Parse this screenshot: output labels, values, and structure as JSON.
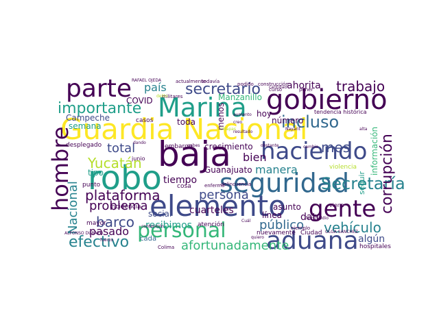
{
  "palette": {
    "dark-purple": "#440154",
    "indigo": "#3e4a89",
    "blue": "#31688e",
    "teal": "#26828e",
    "green": "#1f9e89",
    "lime": "#35b779",
    "light-green": "#6ece58",
    "yellow-green": "#b5de2b",
    "yellow": "#fde725"
  },
  "words": [
    "Guardia Nacional",
    "Marina",
    "baja",
    "gobierno",
    "seguridad",
    "elemento",
    "robo",
    "aduana",
    "haciendo",
    "gente",
    "parte",
    "personal",
    "hombre",
    "importante",
    "Secretaría",
    "secretario",
    "Yucatán",
    "plataforma",
    "incluso",
    "corrupción",
    "efectivo",
    "mes",
    "Nacional",
    "trabajo",
    "barco",
    "problema",
    "persona",
    "vehículo",
    "país",
    "afortunadamente",
    "ahorita",
    "total",
    "recibimos",
    "pasado",
    "Campeche",
    "público",
    "manera",
    "tiempo",
    "dato",
    "bien",
    "crecimiento",
    "Manzanillo",
    "cuarteles",
    "COVID",
    "algún",
    "Guanajuato",
    "número",
    "información",
    "semana",
    "social",
    "línea",
    "tipo",
    "hoy",
    "cada",
    "asunto",
    "toda",
    "menos",
    "seguir",
    "mayor",
    "hospitales",
    "atención",
    "casos",
    "punto",
    "Ciudad",
    "tendencia histórica",
    "desplegado",
    "embargo",
    "junio",
    "delincuencia",
    "cosa",
    "incidencia",
    "enfermo",
    "violencia",
    "nuevamente",
    "Colima",
    "ejemplo",
    "RAFAEL OJEDA",
    "actualmente",
    "todavía",
    "podido",
    "construcción",
    "curso",
    "poner",
    "militares",
    "delito",
    "sabes",
    "creo",
    "aumento",
    "contención",
    "resultado",
    "alta",
    "cantidad",
    "quiero",
    "ALFONSO DURAZO",
    "feminicidio",
    "Chiapas",
    "Nayarit",
    "cambio",
    "dando",
    "obstante",
    "fuerzo",
    "Cuál",
    "viene",
    "OLGA SÁNCHEZ"
  ]
}
